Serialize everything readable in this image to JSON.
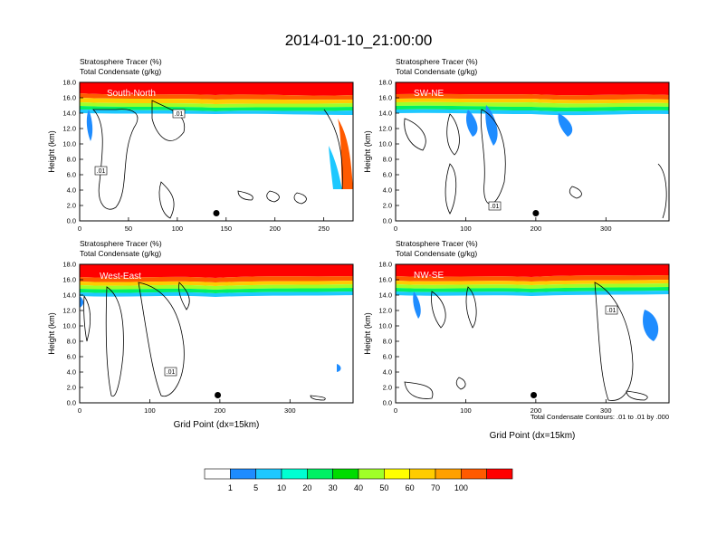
{
  "main_title": "2014-01-10_21:00:00",
  "panel_title_line1": "Stratosphere Tracer   (%)",
  "panel_title_line2": "Total Condensate   (g/kg)",
  "x_axis_label": "Grid Point (dx=15km)",
  "contour_note": "Total Condensate Contours: .01 to .01 by .000",
  "colorbar": {
    "labels": [
      "1",
      "5",
      "10",
      "20",
      "30",
      "40",
      "50",
      "60",
      "70",
      "100"
    ],
    "colors": [
      "#ffffff",
      "#1e8cff",
      "#1ec8ff",
      "#00ffd2",
      "#00f064",
      "#00dc00",
      "#a0ff28",
      "#ffff00",
      "#ffcc00",
      "#ffa000",
      "#ff5a00",
      "#ff0000"
    ]
  },
  "chart_data": [
    {
      "type": "heatmap",
      "name": "South-North",
      "ylabel": "Height (km)",
      "xlabel": "",
      "xlim": [
        0,
        280
      ],
      "ylim": [
        0,
        18
      ],
      "xticks": [
        0,
        50,
        100,
        150,
        200,
        250
      ],
      "yticks": [
        "0.0",
        "2.0",
        "4.0",
        "6.0",
        "8.0",
        "10.0",
        "12.0",
        "14.0",
        "16.0",
        "18.0"
      ],
      "contour_labels": [
        ".01",
        ".01"
      ],
      "marker_x": 140,
      "marker_height_km": 1.0
    },
    {
      "type": "heatmap",
      "name": "SW-NE",
      "ylabel": "Height (km)",
      "xlabel": "",
      "xlim": [
        0,
        390
      ],
      "ylim": [
        0,
        18
      ],
      "xticks": [
        0,
        100,
        200,
        300
      ],
      "yticks": [
        "0.0",
        "2.0",
        "4.0",
        "6.0",
        "8.0",
        "10.0",
        "12.0",
        "14.0",
        "16.0",
        "18.0"
      ],
      "contour_labels": [
        ".01"
      ],
      "marker_x": 200,
      "marker_height_km": 1.0
    },
    {
      "type": "heatmap",
      "name": "West-East",
      "ylabel": "Height (km)",
      "xlabel": "Grid Point (dx=15km)",
      "xlim": [
        0,
        390
      ],
      "ylim": [
        0,
        18
      ],
      "xticks": [
        0,
        100,
        200,
        300
      ],
      "yticks": [
        "0.0",
        "2.0",
        "4.0",
        "6.0",
        "8.0",
        "10.0",
        "12.0",
        "14.0",
        "16.0",
        "18.0"
      ],
      "contour_labels": [
        ".01"
      ],
      "marker_x": 197,
      "marker_height_km": 1.0
    },
    {
      "type": "heatmap",
      "name": "NW-SE",
      "ylabel": "Height (km)",
      "xlabel": "Grid Point (dx=15km)",
      "xlim": [
        0,
        390
      ],
      "ylim": [
        0,
        18
      ],
      "xticks": [
        0,
        100,
        200,
        300
      ],
      "yticks": [
        "0.0",
        "2.0",
        "4.0",
        "6.0",
        "8.0",
        "10.0",
        "12.0",
        "14.0",
        "16.0",
        "18.0"
      ],
      "contour_labels": [
        ".01"
      ],
      "marker_x": 197,
      "marker_height_km": 1.0
    }
  ]
}
